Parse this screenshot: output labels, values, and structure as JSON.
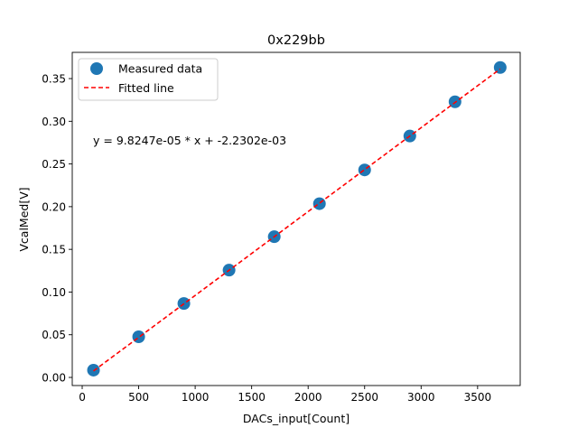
{
  "chart_data": {
    "type": "scatter",
    "title": "0x229bb",
    "xlabel": "DACs_input[Count]",
    "ylabel": "VcalMed[V]",
    "xlim": [
      -88,
      3877
    ],
    "ylim": [
      -0.0095,
      0.3807
    ],
    "xticks": [
      0,
      500,
      1000,
      1500,
      2000,
      2500,
      3000,
      3500
    ],
    "xtick_labels": [
      "0",
      "500",
      "1000",
      "1500",
      "2000",
      "2500",
      "3000",
      "3500"
    ],
    "yticks": [
      0.0,
      0.05,
      0.1,
      0.15,
      0.2,
      0.25,
      0.3,
      0.35
    ],
    "ytick_labels": [
      "0.00",
      "0.05",
      "0.10",
      "0.15",
      "0.20",
      "0.25",
      "0.30",
      "0.35"
    ],
    "grid": false,
    "legend_position": "top-left",
    "series": [
      {
        "name": "Measured data",
        "kind": "scatter",
        "color": "#1f77b4",
        "x": [
          100,
          500,
          900,
          1300,
          1700,
          2100,
          2500,
          2900,
          3300,
          3700
        ],
        "y": [
          0.0085,
          0.0476,
          0.0866,
          0.1257,
          0.1648,
          0.2035,
          0.243,
          0.2827,
          0.3228,
          0.363
        ]
      },
      {
        "name": "Fitted line",
        "kind": "line",
        "style": "dashed",
        "color": "#ff0000",
        "slope": 9.8247e-05,
        "intercept": -0.0022302,
        "x": [
          100,
          3700
        ]
      }
    ],
    "annotation": "y = 9.8247e-05 * x + -2.2302e-03"
  }
}
